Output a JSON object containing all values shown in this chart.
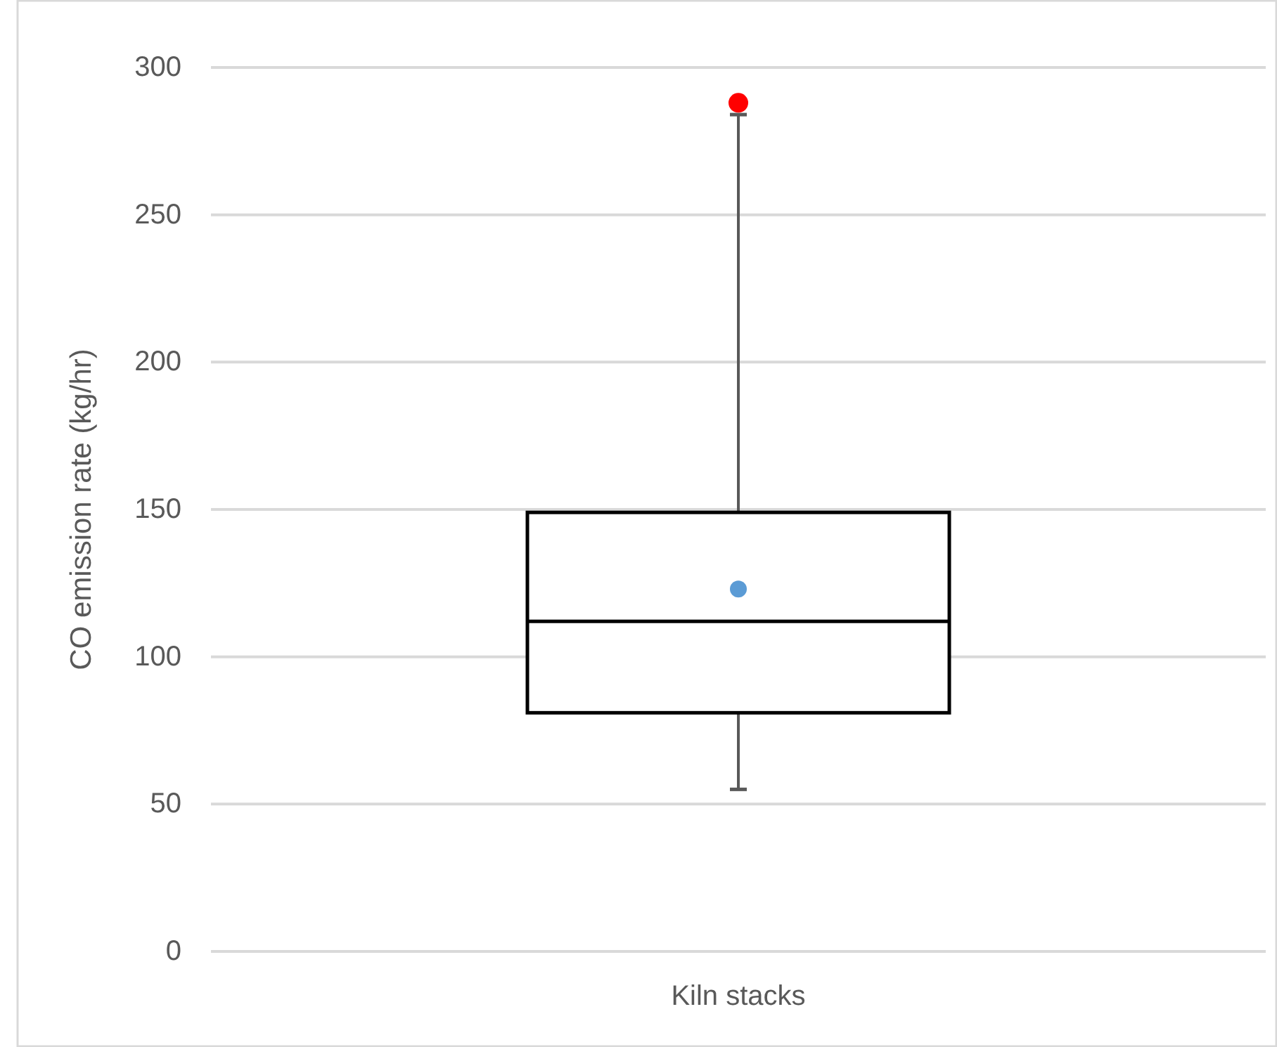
{
  "chart_data": {
    "type": "box",
    "categories": [
      "Kiln stacks"
    ],
    "color": "#000000",
    "boxes": [
      {
        "low": 55,
        "q1": 81,
        "median": 112,
        "q3": 149,
        "high": 284,
        "mean": 123,
        "outliers": [
          288
        ]
      }
    ],
    "ylabel": "CO emission rate (kg/hr)",
    "ylim": [
      0,
      300
    ],
    "yticks": [
      0,
      50,
      100,
      150,
      200,
      250,
      300
    ],
    "grid": "y"
  }
}
